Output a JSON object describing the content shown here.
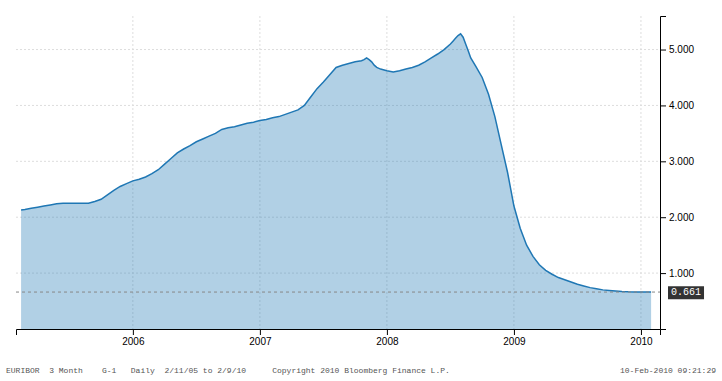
{
  "chart_data": {
    "type": "area",
    "x": [
      2005.12,
      2005.15,
      2005.2,
      2005.25,
      2005.3,
      2005.35,
      2005.4,
      2005.45,
      2005.5,
      2005.55,
      2005.6,
      2005.65,
      2005.7,
      2005.75,
      2005.8,
      2005.85,
      2005.9,
      2005.95,
      2006.0,
      2006.05,
      2006.1,
      2006.15,
      2006.2,
      2006.25,
      2006.3,
      2006.35,
      2006.4,
      2006.45,
      2006.5,
      2006.55,
      2006.6,
      2006.65,
      2006.7,
      2006.75,
      2006.8,
      2006.85,
      2006.9,
      2006.95,
      2007.0,
      2007.05,
      2007.1,
      2007.15,
      2007.2,
      2007.25,
      2007.3,
      2007.35,
      2007.4,
      2007.45,
      2007.5,
      2007.55,
      2007.6,
      2007.65,
      2007.7,
      2007.75,
      2007.8,
      2007.82,
      2007.84,
      2007.86,
      2007.88,
      2007.9,
      2007.92,
      2007.95,
      2008.0,
      2008.05,
      2008.1,
      2008.15,
      2008.2,
      2008.25,
      2008.3,
      2008.35,
      2008.4,
      2008.45,
      2008.5,
      2008.52,
      2008.54,
      2008.56,
      2008.58,
      2008.6,
      2008.62,
      2008.64,
      2008.66,
      2008.7,
      2008.75,
      2008.8,
      2008.85,
      2008.9,
      2008.95,
      2009.0,
      2009.05,
      2009.1,
      2009.15,
      2009.2,
      2009.25,
      2009.3,
      2009.35,
      2009.4,
      2009.45,
      2009.5,
      2009.55,
      2009.6,
      2009.65,
      2009.7,
      2009.75,
      2009.8,
      2009.85,
      2009.9,
      2009.95,
      2010.0,
      2010.08
    ],
    "values": [
      2.13,
      2.14,
      2.16,
      2.18,
      2.2,
      2.22,
      2.24,
      2.25,
      2.25,
      2.25,
      2.25,
      2.25,
      2.28,
      2.32,
      2.4,
      2.48,
      2.55,
      2.6,
      2.65,
      2.68,
      2.72,
      2.78,
      2.85,
      2.95,
      3.05,
      3.15,
      3.22,
      3.28,
      3.35,
      3.4,
      3.45,
      3.5,
      3.57,
      3.6,
      3.62,
      3.65,
      3.68,
      3.7,
      3.73,
      3.75,
      3.78,
      3.8,
      3.84,
      3.88,
      3.92,
      4.0,
      4.15,
      4.3,
      4.42,
      4.55,
      4.68,
      4.72,
      4.75,
      4.78,
      4.8,
      4.82,
      4.85,
      4.82,
      4.78,
      4.72,
      4.68,
      4.65,
      4.62,
      4.6,
      4.62,
      4.65,
      4.68,
      4.72,
      4.78,
      4.85,
      4.92,
      5.0,
      5.1,
      5.15,
      5.2,
      5.25,
      5.28,
      5.22,
      5.1,
      4.98,
      4.85,
      4.7,
      4.5,
      4.2,
      3.8,
      3.3,
      2.8,
      2.2,
      1.8,
      1.5,
      1.3,
      1.15,
      1.05,
      0.98,
      0.92,
      0.88,
      0.84,
      0.8,
      0.77,
      0.74,
      0.72,
      0.7,
      0.69,
      0.68,
      0.67,
      0.665,
      0.663,
      0.661,
      0.661
    ],
    "xlim": [
      2005.08,
      2010.15
    ],
    "xticks": [
      2006,
      2007,
      2008,
      2009,
      2010
    ],
    "ylim": [
      0.0,
      5.6
    ],
    "yticks": [
      {
        "value": 1.0,
        "label": "1.000"
      },
      {
        "value": 2.0,
        "label": "2.000"
      },
      {
        "value": 3.0,
        "label": "3.000"
      },
      {
        "value": 4.0,
        "label": "4.000"
      },
      {
        "value": 5.0,
        "label": "5.000"
      }
    ],
    "grid": true,
    "annotations": [
      {
        "text": "EURIBOR  3 Month    G-1   Daily  2/11/05 to 2/9/10"
      },
      {
        "text": "Copyright 2010 Bloomberg Finance L.P."
      },
      {
        "text": "10-Feb-2010 09:21:29"
      },
      {
        "y": 0.661,
        "text": "0.661"
      }
    ]
  }
}
